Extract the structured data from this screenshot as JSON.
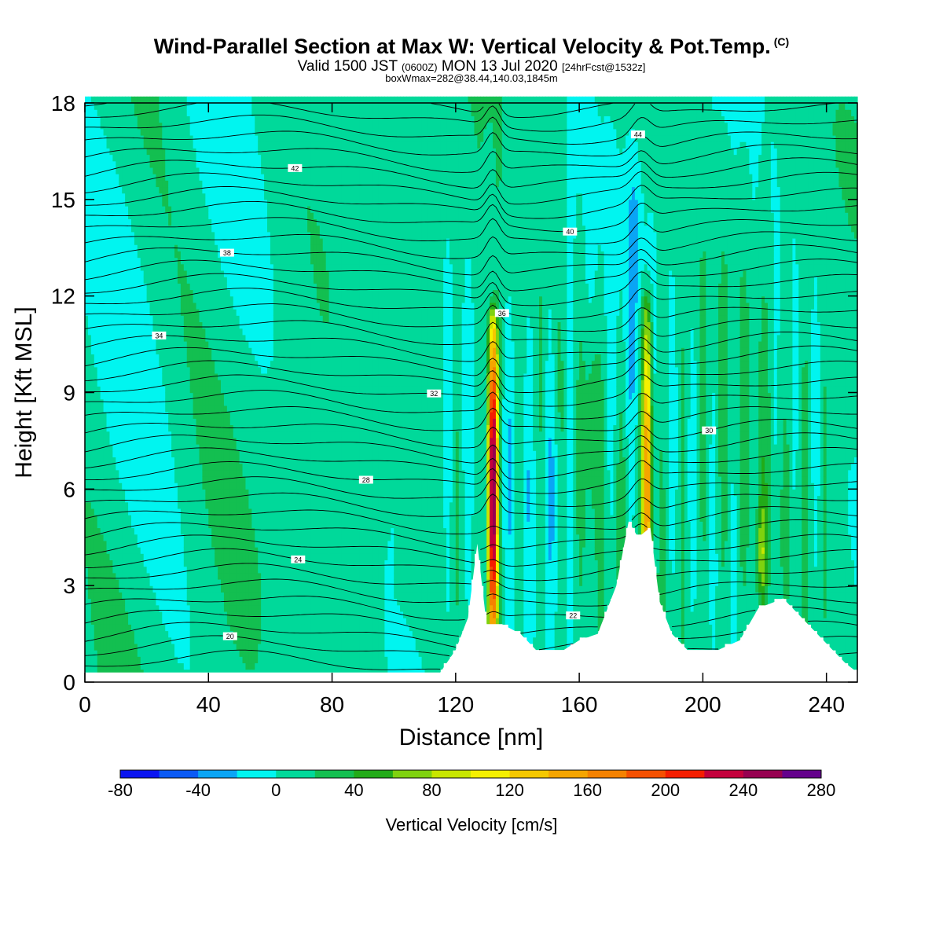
{
  "header": {
    "title": "Wind-Parallel Section at Max W: Vertical Velocity & Pot.Temp.",
    "title_mark": "(C)",
    "subtitle_valid": "Valid 1500 JST",
    "subtitle_utc": "(0600Z)",
    "subtitle_date": "MON 13 Jul 2020",
    "subtitle_fcst": "[24hrFcst@1532z]",
    "box_line": "boxWmax=282@38.44,140.03,1845m"
  },
  "chart_data": {
    "type": "heatmap",
    "title": "Wind-Parallel Section at Max W: Vertical Velocity & Pot.Temp.",
    "xlabel": "Distance [nm]",
    "ylabel": "Height [Kft MSL]",
    "xlim": [
      0,
      250
    ],
    "ylim": [
      0,
      18
    ],
    "x_ticks": [
      0,
      40,
      80,
      120,
      160,
      200,
      240
    ],
    "y_ticks": [
      0,
      3,
      6,
      9,
      12,
      15,
      18
    ],
    "x_tick_labels": [
      "0",
      "40",
      "80",
      "120",
      "160",
      "200",
      "240"
    ],
    "y_tick_labels": [
      "0",
      "3",
      "6",
      "9",
      "12",
      "15",
      "18"
    ],
    "colorbar": {
      "label": "Vertical Velocity [cm/s]",
      "levels": [
        -80,
        -60,
        -40,
        -20,
        0,
        20,
        40,
        60,
        80,
        100,
        120,
        140,
        160,
        180,
        200,
        220,
        240,
        260,
        280
      ],
      "tick_values": [
        -80,
        -40,
        0,
        40,
        80,
        120,
        160,
        200,
        240,
        280
      ],
      "tick_labels": [
        "-80",
        "-40",
        "0",
        "40",
        "80",
        "120",
        "160",
        "200",
        "240",
        "280"
      ],
      "colors": [
        "#0a14f0",
        "#0a5af5",
        "#0aa5f5",
        "#00f5f0",
        "#00d99a",
        "#13bf50",
        "#22ab18",
        "#7fd20f",
        "#c8e600",
        "#f5f000",
        "#f5c800",
        "#f5a500",
        "#f58200",
        "#f55000",
        "#f51e00",
        "#c3003c",
        "#960050",
        "#64008c"
      ]
    },
    "theta_contours": {
      "units": "C",
      "levels": [
        20,
        22,
        24,
        26,
        28,
        30,
        32,
        34,
        36,
        38,
        40,
        42,
        44,
        46,
        48
      ]
    },
    "updraft_cores": [
      {
        "x_nm": 132,
        "top_kft": 11,
        "peak_cm_s": 282
      },
      {
        "x_nm": 182,
        "top_kft": 11.5,
        "peak_cm_s": 160
      }
    ],
    "terrain_kft": [
      {
        "x": 0,
        "h": 0.3
      },
      {
        "x": 105,
        "h": 0.3
      },
      {
        "x": 115,
        "h": 0.3
      },
      {
        "x": 120,
        "h": 1.0
      },
      {
        "x": 124,
        "h": 2.0
      },
      {
        "x": 127,
        "h": 4.3
      },
      {
        "x": 130,
        "h": 1.8
      },
      {
        "x": 135,
        "h": 1.8
      },
      {
        "x": 141,
        "h": 1.5
      },
      {
        "x": 146,
        "h": 1.0
      },
      {
        "x": 155,
        "h": 1.0
      },
      {
        "x": 160,
        "h": 1.3
      },
      {
        "x": 166,
        "h": 1.5
      },
      {
        "x": 172,
        "h": 3.0
      },
      {
        "x": 176,
        "h": 5.0
      },
      {
        "x": 179,
        "h": 4.5
      },
      {
        "x": 183,
        "h": 4.8
      },
      {
        "x": 186,
        "h": 2.5
      },
      {
        "x": 190,
        "h": 1.5
      },
      {
        "x": 195,
        "h": 1.0
      },
      {
        "x": 205,
        "h": 1.0
      },
      {
        "x": 212,
        "h": 1.3
      },
      {
        "x": 218,
        "h": 2.3
      },
      {
        "x": 226,
        "h": 2.6
      },
      {
        "x": 232,
        "h": 2.0
      },
      {
        "x": 240,
        "h": 1.2
      },
      {
        "x": 246,
        "h": 0.6
      },
      {
        "x": 250,
        "h": 0.3
      }
    ]
  }
}
